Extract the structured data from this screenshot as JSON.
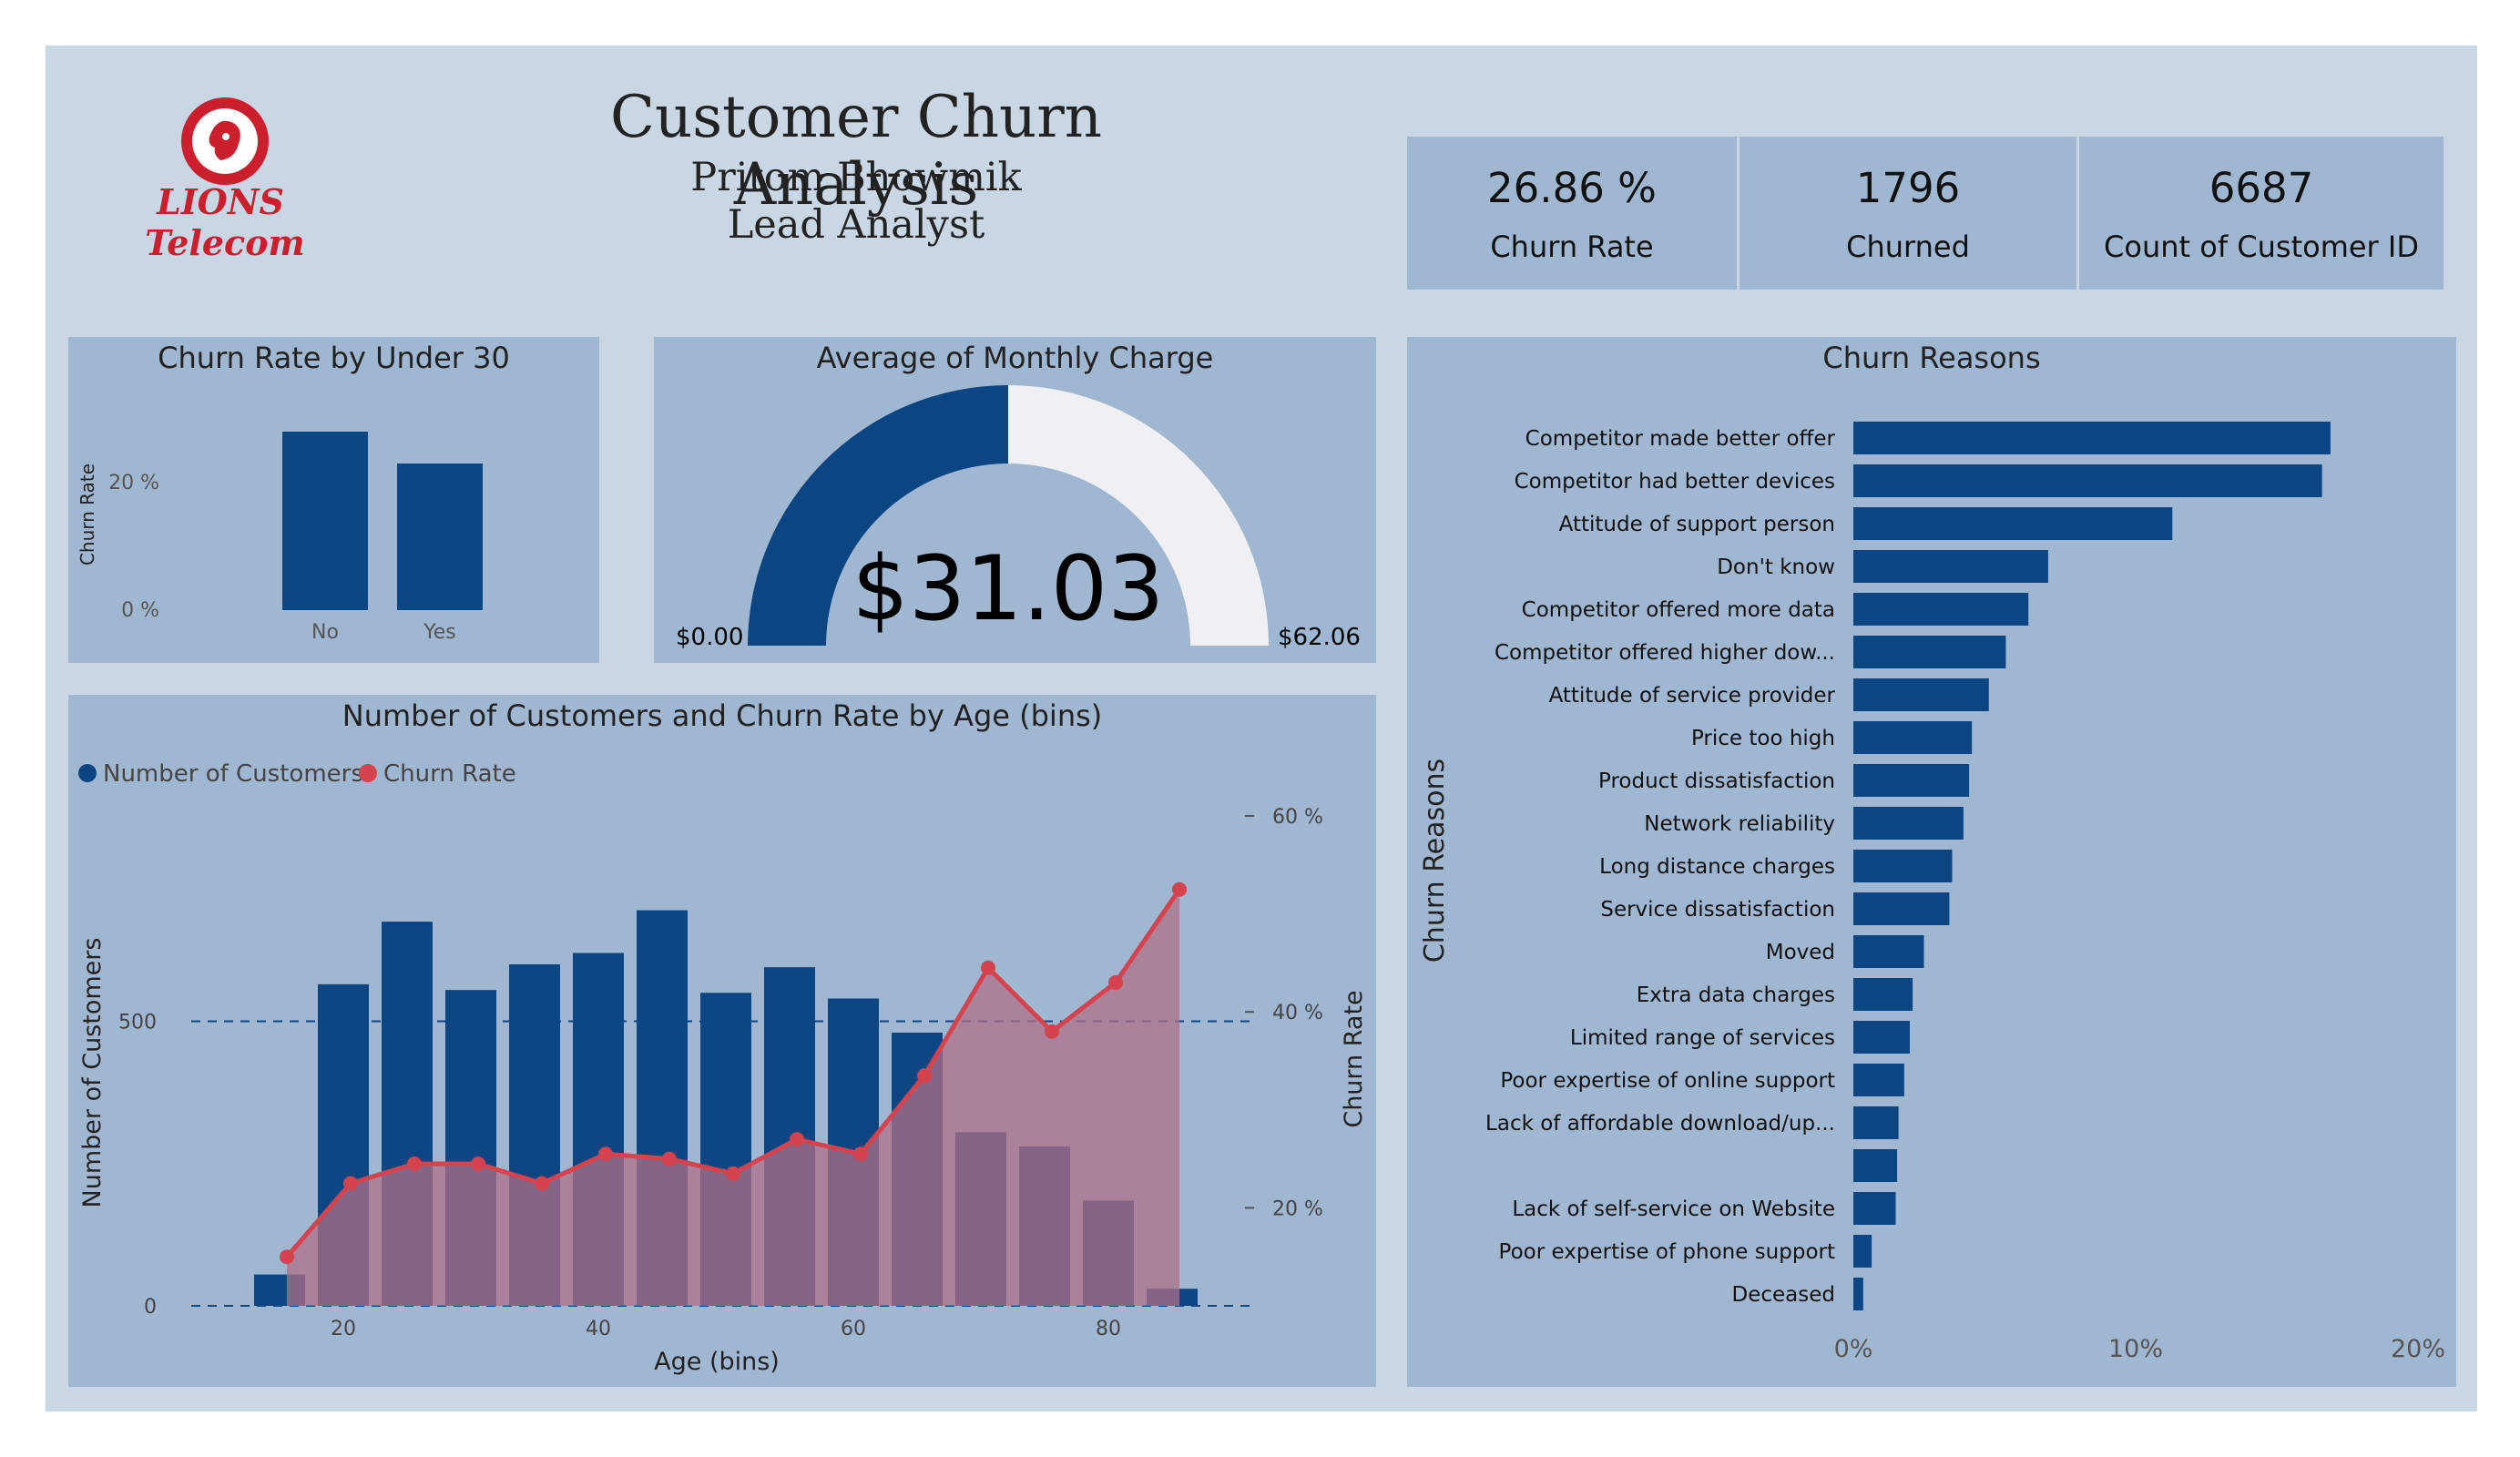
{
  "header": {
    "title": "Customer Churn Analysis",
    "name": "Pritom Bhowmik",
    "role": "Lead Analyst",
    "logo_line1": "LIONS",
    "logo_line2": "Telecom"
  },
  "kpis": [
    {
      "value": "26.86 %",
      "label": "Churn Rate"
    },
    {
      "value": "1796",
      "label": "Churned"
    },
    {
      "value": "6687",
      "label": "Count of Customer ID"
    }
  ],
  "colors": {
    "bar": "#0b4582",
    "line": "#d5434f",
    "area": "#b06f87",
    "gauge_empty": "#f0f0f4",
    "panel": "#a0b7d1",
    "background": "#c9d7e5"
  },
  "chart_data": [
    {
      "id": "under30",
      "type": "bar",
      "title": "Churn Rate by Under 30",
      "xlabel": "",
      "ylabel": "Churn Rate",
      "categories": [
        "No",
        "Yes"
      ],
      "values": [
        28,
        23
      ],
      "ylim": [
        0,
        30
      ],
      "yticks": [
        {
          "v": 0,
          "label": "0 %"
        },
        {
          "v": 20,
          "label": "20 %"
        }
      ]
    },
    {
      "id": "gauge",
      "type": "gauge",
      "title": "Average of Monthly Charge",
      "value": 31.03,
      "min": 0,
      "max": 62.06,
      "value_label": "$31.03",
      "min_label": "$0.00",
      "max_label": "$62.06"
    },
    {
      "id": "age",
      "type": "bar+line",
      "title": "Number of Customers and Churn Rate by Age (bins)",
      "xlabel": "Age (bins)",
      "ylabel": "Number of Customers",
      "y2label": "Churn Rate",
      "legend": [
        "Number of Customers",
        "Churn Rate"
      ],
      "x": [
        15,
        20,
        25,
        30,
        35,
        40,
        45,
        50,
        55,
        60,
        65,
        70,
        75,
        80,
        85
      ],
      "series": [
        {
          "name": "Number of Customers",
          "values": [
            55,
            565,
            675,
            555,
            600,
            620,
            695,
            550,
            595,
            540,
            480,
            305,
            280,
            185,
            30
          ]
        },
        {
          "name": "Churn Rate",
          "values": [
            15,
            22.5,
            24.5,
            24.5,
            22.5,
            25.5,
            25,
            23.5,
            27,
            25.5,
            33.5,
            44.5,
            38,
            43,
            52.5
          ]
        }
      ],
      "xlim": [
        7.5,
        87.5
      ],
      "ylim": [
        0,
        800
      ],
      "y2lim": [
        10,
        60
      ],
      "xticks": [
        {
          "v": 20,
          "label": "20"
        },
        {
          "v": 40,
          "label": "40"
        },
        {
          "v": 60,
          "label": "60"
        },
        {
          "v": 80,
          "label": "80"
        }
      ],
      "yticks": [
        {
          "v": 0,
          "label": "0"
        },
        {
          "v": 500,
          "label": "500"
        }
      ],
      "y2ticks": [
        {
          "v": 20,
          "label": "20 %"
        },
        {
          "v": 40,
          "label": "40 %"
        },
        {
          "v": 60,
          "label": "60 %"
        }
      ]
    },
    {
      "id": "reasons",
      "type": "bar",
      "orientation": "horizontal",
      "title": "Churn Reasons",
      "ylabel": "Churn Reasons",
      "categories": [
        "Competitor made better offer",
        "Competitor had better devices",
        "Attitude of support person",
        "Don't know",
        "Competitor offered more data",
        "Competitor offered higher dow...",
        "Attitude of service provider",
        "Price too high",
        "Product dissatisfaction",
        "Network reliability",
        "Long distance charges",
        "Service dissatisfaction",
        "Moved",
        "Extra data charges",
        "Limited range of services",
        "Poor expertise of online support",
        "Lack of affordable download/up...",
        "",
        "Lack of self-service on Website",
        "Poor expertise of phone support",
        "Deceased"
      ],
      "values": [
        16.9,
        16.6,
        11.3,
        6.9,
        6.2,
        5.4,
        4.8,
        4.2,
        4.1,
        3.9,
        3.5,
        3.4,
        2.5,
        2.1,
        2.0,
        1.8,
        1.6,
        1.55,
        1.5,
        0.65,
        0.35
      ],
      "xlim": [
        0,
        20
      ],
      "xticks": [
        {
          "v": 0,
          "label": "0%"
        },
        {
          "v": 10,
          "label": "10%"
        },
        {
          "v": 20,
          "label": "20%"
        }
      ]
    }
  ]
}
